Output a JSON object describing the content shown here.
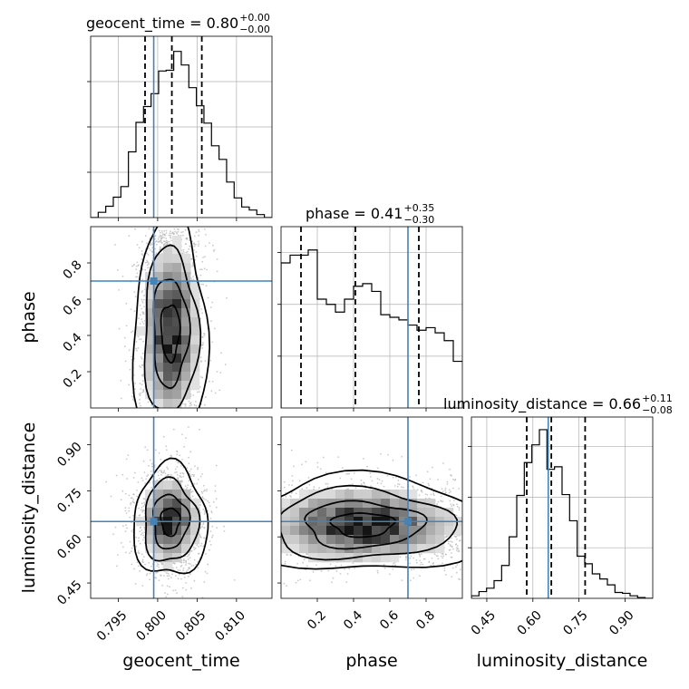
{
  "figure": {
    "type": "corner_plot"
  },
  "chart_data": {
    "type": "corner",
    "parameters": [
      "geocent_time",
      "phase",
      "luminosity_distance"
    ],
    "truths": {
      "geocent_time": 0.7995,
      "phase": 0.7,
      "luminosity_distance": 0.65
    },
    "colors": {
      "truth": "#4682b4",
      "hist": "#000000",
      "grid": "#b0b0b0",
      "scatter": "#b4b4b4"
    },
    "grid": true,
    "titles": [
      {
        "param": "geocent_time",
        "label": "geocent_time = 0.80",
        "sup": "+0.00",
        "sub": "−0.00"
      },
      {
        "param": "phase",
        "label": "phase = 0.41",
        "sup": "+0.35",
        "sub": "−0.30"
      },
      {
        "param": "luminosity_distance",
        "label": "luminosity_distance = 0.66",
        "sup": "+0.11",
        "sub": "−0.08"
      }
    ],
    "axes": {
      "geocent_time": {
        "label": "geocent_time",
        "range": [
          0.7915,
          0.8145
        ],
        "ticks": [
          0.795,
          0.8,
          0.805,
          0.81
        ],
        "tick_labels": [
          "0.795",
          "0.800",
          "0.805",
          "0.810"
        ]
      },
      "phase": {
        "label": "phase",
        "range": [
          0.0,
          1.0
        ],
        "ticks": [
          0.2,
          0.4,
          0.6,
          0.8
        ],
        "tick_labels": [
          "0.2",
          "0.4",
          "0.6",
          "0.8"
        ]
      },
      "luminosity_distance": {
        "label": "luminosity_distance",
        "range": [
          0.4,
          0.99
        ],
        "ticks": [
          0.45,
          0.6,
          0.75,
          0.9
        ],
        "tick_labels": [
          "0.45",
          "0.60",
          "0.75",
          "0.90"
        ]
      }
    },
    "histograms": {
      "geocent_time": {
        "bin_start": 0.7915,
        "bin_width": 0.000958,
        "counts": [
          0.0,
          0.7,
          1.5,
          2.7,
          4.1,
          8.7,
          12.6,
          14.7,
          16.4,
          19.4,
          19.5,
          22.0,
          20.2,
          17.2,
          14.8,
          12.5,
          9.5,
          7.7,
          4.7,
          2.6,
          1.4,
          1.0,
          0.4,
          0.0
        ],
        "ylim": [
          0,
          24
        ],
        "quantiles": [
          0.7984,
          0.8018,
          0.8056
        ]
      },
      "phase": {
        "bin_start": 0.0,
        "bin_width": 0.05,
        "counts": [
          28.0,
          29.5,
          29.5,
          30.5,
          21.0,
          20.0,
          18.5,
          21.0,
          23.5,
          24.0,
          22.5,
          18.0,
          17.5,
          17.0,
          16.0,
          15.0,
          15.5,
          14.5,
          13.0,
          9.0
        ],
        "ylim": [
          0,
          35
        ],
        "quantiles": [
          0.11,
          0.41,
          0.76
        ]
      },
      "luminosity_distance": {
        "bin_start": 0.4,
        "bin_width": 0.02458,
        "counts": [
          0.3,
          0.8,
          1.2,
          2.1,
          3.9,
          7.3,
          12.2,
          16.1,
          18.2,
          20.0,
          15.3,
          15.6,
          12.3,
          9.2,
          5.0,
          4.1,
          2.9,
          2.3,
          1.6,
          0.7,
          0.6,
          0.3,
          0.1,
          0.0
        ],
        "ylim": [
          0,
          21.5
        ],
        "quantiles": [
          0.58,
          0.66,
          0.77
        ]
      }
    },
    "density_2d": [
      {
        "x": "geocent_time",
        "y": "phase",
        "mean": [
          0.8016,
          0.42
        ],
        "std": [
          0.0018,
          0.24
        ]
      },
      {
        "x": "geocent_time",
        "y": "luminosity_distance",
        "mean": [
          0.8016,
          0.65
        ],
        "std": [
          0.0018,
          0.07
        ]
      },
      {
        "x": "phase",
        "y": "luminosity_distance",
        "mean": [
          0.45,
          0.64
        ],
        "std": [
          0.26,
          0.06
        ]
      }
    ]
  }
}
